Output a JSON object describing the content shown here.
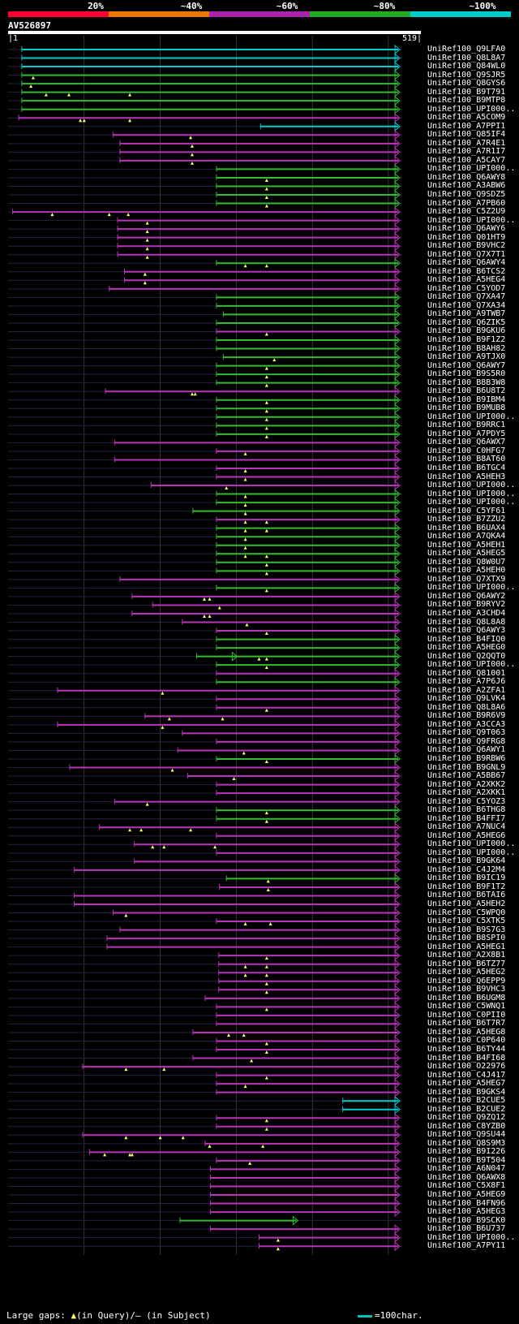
{
  "scale": {
    "labels": [
      "20%",
      "~40%",
      "~60%",
      "~80%",
      "~100%"
    ],
    "colors": [
      "#ff0033",
      "#ee7700",
      "#aa22aa",
      "#22aa22",
      "#00cccc"
    ]
  },
  "query": {
    "id": "AV526897",
    "start": "|1",
    "end": "519|",
    "length": 519
  },
  "colors": {
    "cyan": "#00cccc",
    "green": "#33bb33",
    "magenta": "#bb33bb",
    "grid": "#555555",
    "dotted": "#222244",
    "triangle": "#ffff66"
  },
  "hits": [
    {
      "label": "UniRef100_Q9LFA0",
      "start": 18,
      "end": 514,
      "c": "cyan"
    },
    {
      "label": "UniRef100_Q8L8A7",
      "start": 18,
      "end": 514,
      "c": "cyan"
    },
    {
      "label": "UniRef100_Q84WL0",
      "start": 18,
      "end": 514,
      "c": "cyan"
    },
    {
      "label": "UniRef100_Q9SJR5",
      "start": 18,
      "end": 514,
      "c": "green",
      "t": [
        33
      ]
    },
    {
      "label": "UniRef100_Q8GYS6",
      "start": 18,
      "end": 514,
      "c": "green",
      "t": [
        30
      ]
    },
    {
      "label": "UniRef100_B9T791",
      "start": 18,
      "end": 514,
      "c": "green",
      "t": [
        50,
        80,
        160
      ]
    },
    {
      "label": "UniRef100_B9MTP8",
      "start": 18,
      "end": 514,
      "c": "green"
    },
    {
      "label": "UniRef100_UPI000..",
      "start": 18,
      "end": 514,
      "c": "green"
    },
    {
      "label": "UniRef100_A5COM9",
      "start": 14,
      "end": 514,
      "c": "magenta",
      "t": [
        95,
        100,
        160
      ]
    },
    {
      "label": "UniRef100_A7PPI1",
      "start": 332,
      "end": 514,
      "c": "cyan"
    },
    {
      "label": "UniRef100_Q85IF4",
      "start": 138,
      "end": 514,
      "c": "magenta",
      "t": [
        240
      ]
    },
    {
      "label": "UniRef100_A7R4E1",
      "start": 147,
      "end": 514,
      "c": "magenta",
      "t": [
        242
      ]
    },
    {
      "label": "UniRef100_A7R1I7",
      "start": 147,
      "end": 514,
      "c": "magenta",
      "t": [
        242
      ]
    },
    {
      "label": "UniRef100_A5CAY7",
      "start": 147,
      "end": 514,
      "c": "magenta",
      "t": [
        242
      ]
    },
    {
      "label": "UniRef100_UPI000..",
      "start": 274,
      "end": 514,
      "c": "green"
    },
    {
      "label": "UniRef100_Q6AWY8",
      "start": 274,
      "end": 514,
      "c": "green",
      "t": [
        340
      ]
    },
    {
      "label": "UniRef100_A3ABW6",
      "start": 274,
      "end": 514,
      "c": "green",
      "t": [
        340
      ]
    },
    {
      "label": "UniRef100_Q9SDZ5",
      "start": 274,
      "end": 514,
      "c": "green",
      "t": [
        340
      ]
    },
    {
      "label": "UniRef100_A7PB60",
      "start": 274,
      "end": 514,
      "c": "green",
      "t": [
        340
      ]
    },
    {
      "label": "UniRef100_C5Z2U9",
      "start": 6,
      "end": 514,
      "c": "magenta",
      "t": [
        58,
        133,
        158
      ]
    },
    {
      "label": "UniRef100_UPI000..",
      "start": 144,
      "end": 514,
      "c": "magenta",
      "t": [
        183
      ]
    },
    {
      "label": "UniRef100_Q6AWY6",
      "start": 144,
      "end": 514,
      "c": "magenta",
      "t": [
        183
      ]
    },
    {
      "label": "UniRef100_Q01HT9",
      "start": 144,
      "end": 514,
      "c": "magenta",
      "t": [
        183
      ]
    },
    {
      "label": "UniRef100_B9VHC2",
      "start": 144,
      "end": 514,
      "c": "magenta",
      "t": [
        183
      ]
    },
    {
      "label": "UniRef100_Q7X7T1",
      "start": 144,
      "end": 514,
      "c": "magenta",
      "t": [
        183
      ]
    },
    {
      "label": "UniRef100_Q6AWY4",
      "start": 274,
      "end": 514,
      "c": "green",
      "t": [
        312,
        340
      ]
    },
    {
      "label": "UniRef100_B6TCS2",
      "start": 153,
      "end": 514,
      "c": "magenta",
      "t": [
        180
      ]
    },
    {
      "label": "UniRef100_A5HEG4",
      "start": 153,
      "end": 514,
      "c": "magenta",
      "t": [
        180
      ]
    },
    {
      "label": "UniRef100_C5YOD7",
      "start": 133,
      "end": 514,
      "c": "magenta"
    },
    {
      "label": "UniRef100_Q7XA47",
      "start": 274,
      "end": 514,
      "c": "green"
    },
    {
      "label": "UniRef100_Q7XA34",
      "start": 274,
      "end": 514,
      "c": "green"
    },
    {
      "label": "UniRef100_A9TWB7",
      "start": 283,
      "end": 514,
      "c": "green"
    },
    {
      "label": "UniRef100_Q6ZIK5",
      "start": 274,
      "end": 514,
      "c": "green"
    },
    {
      "label": "UniRef100_B9GKU6",
      "start": 274,
      "end": 514,
      "c": "magenta",
      "t": [
        340
      ]
    },
    {
      "label": "UniRef100_B9F1Z2",
      "start": 274,
      "end": 514,
      "c": "green"
    },
    {
      "label": "UniRef100_B8AH82",
      "start": 274,
      "end": 514,
      "c": "green"
    },
    {
      "label": "UniRef100_A9TJX0",
      "start": 283,
      "end": 514,
      "c": "green",
      "t": [
        350
      ]
    },
    {
      "label": "UniRef100_Q6AWY7",
      "start": 274,
      "end": 514,
      "c": "green",
      "t": [
        340
      ]
    },
    {
      "label": "UniRef100_B9S5R0",
      "start": 274,
      "end": 514,
      "c": "green",
      "t": [
        340
      ]
    },
    {
      "label": "UniRef100_B8B3W8",
      "start": 274,
      "end": 514,
      "c": "green",
      "t": [
        340
      ]
    },
    {
      "label": "UniRef100_B6U8T2",
      "start": 128,
      "end": 514,
      "c": "magenta",
      "t": [
        242,
        246
      ]
    },
    {
      "label": "UniRef100_B9IBM4",
      "start": 274,
      "end": 514,
      "c": "green",
      "t": [
        340
      ]
    },
    {
      "label": "UniRef100_B9MUB8",
      "start": 274,
      "end": 514,
      "c": "green",
      "t": [
        340
      ]
    },
    {
      "label": "UniRef100_UPI000..",
      "start": 274,
      "end": 514,
      "c": "green",
      "t": [
        340
      ]
    },
    {
      "label": "UniRef100_B9RRC1",
      "start": 274,
      "end": 514,
      "c": "green",
      "t": [
        340
      ]
    },
    {
      "label": "UniRef100_A7PDY5",
      "start": 274,
      "end": 514,
      "c": "green",
      "t": [
        340
      ]
    },
    {
      "label": "UniRef100_Q6AWX7",
      "start": 140,
      "end": 514,
      "c": "magenta"
    },
    {
      "label": "UniRef100_C0HFG7",
      "start": 274,
      "end": 514,
      "c": "magenta",
      "t": [
        312
      ]
    },
    {
      "label": "UniRef100_B8AT60",
      "start": 140,
      "end": 514,
      "c": "magenta"
    },
    {
      "label": "UniRef100_B6TGC4",
      "start": 274,
      "end": 514,
      "c": "magenta",
      "t": [
        312
      ]
    },
    {
      "label": "UniRef100_A5HEH3",
      "start": 274,
      "end": 514,
      "c": "magenta",
      "t": [
        312
      ]
    },
    {
      "label": "UniRef100_UPI000..",
      "start": 188,
      "end": 514,
      "c": "magenta",
      "t": [
        287
      ]
    },
    {
      "label": "UniRef100_UPI000..",
      "start": 274,
      "end": 514,
      "c": "green",
      "t": [
        312
      ]
    },
    {
      "label": "UniRef100_UPI000..",
      "start": 274,
      "end": 514,
      "c": "green",
      "t": [
        312
      ]
    },
    {
      "label": "UniRef100_C5YF61",
      "start": 243,
      "end": 514,
      "c": "green",
      "t": [
        312
      ]
    },
    {
      "label": "UniRef100_B7ZZU2",
      "start": 274,
      "end": 514,
      "c": "magenta",
      "t": [
        312,
        340
      ]
    },
    {
      "label": "UniRef100_B6UAX4",
      "start": 274,
      "end": 514,
      "c": "green",
      "t": [
        312,
        340
      ]
    },
    {
      "label": "UniRef100_A7QKA4",
      "start": 274,
      "end": 514,
      "c": "green",
      "t": [
        312
      ]
    },
    {
      "label": "UniRef100_A5HEH1",
      "start": 274,
      "end": 514,
      "c": "green",
      "t": [
        312
      ]
    },
    {
      "label": "UniRef100_A5HEG5",
      "start": 274,
      "end": 514,
      "c": "green",
      "t": [
        312,
        340
      ]
    },
    {
      "label": "UniRef100_Q8W0U7",
      "start": 274,
      "end": 514,
      "c": "green",
      "t": [
        340
      ]
    },
    {
      "label": "UniRef100_A5HEH0",
      "start": 274,
      "end": 514,
      "c": "green",
      "t": [
        340
      ]
    },
    {
      "label": "UniRef100_Q7XTX9",
      "start": 147,
      "end": 514,
      "c": "magenta"
    },
    {
      "label": "UniRef100_UPI000..",
      "start": 274,
      "end": 514,
      "c": "green",
      "t": [
        340
      ]
    },
    {
      "label": "UniRef100_Q6AWY2",
      "start": 163,
      "end": 514,
      "c": "magenta",
      "t": [
        258,
        265
      ]
    },
    {
      "label": "UniRef100_B9RYV2",
      "start": 190,
      "end": 514,
      "c": "magenta",
      "t": [
        278
      ]
    },
    {
      "label": "UniRef100_A3CHD4",
      "start": 163,
      "end": 514,
      "c": "magenta",
      "t": [
        258,
        265
      ]
    },
    {
      "label": "UniRef100_Q8L8A8",
      "start": 229,
      "end": 514,
      "c": "magenta",
      "t": [
        314
      ]
    },
    {
      "label": "UniRef100_Q6AWY3",
      "start": 274,
      "end": 514,
      "c": "magenta",
      "t": [
        340
      ]
    },
    {
      "label": "UniRef100_B4FIQ0",
      "start": 274,
      "end": 514,
      "c": "green"
    },
    {
      "label": "UniRef100_A5HEG0",
      "start": 274,
      "end": 514,
      "c": "green"
    },
    {
      "label": "UniRef100_Q2QQT0",
      "start": 248,
      "end": 514,
      "c": "green",
      "t": [
        330,
        340
      ],
      "mid": 300
    },
    {
      "label": "UniRef100_UPI000..",
      "start": 274,
      "end": 514,
      "c": "green",
      "t": [
        340
      ]
    },
    {
      "label": "UniRef100_Q81001",
      "start": 274,
      "end": 514,
      "c": "magenta"
    },
    {
      "label": "UniRef100_A7P6J6",
      "start": 274,
      "end": 514,
      "c": "green"
    },
    {
      "label": "UniRef100_A2ZFA1",
      "start": 65,
      "end": 514,
      "c": "magenta",
      "t": [
        203
      ]
    },
    {
      "label": "UniRef100_Q9LVK4",
      "start": 274,
      "end": 514,
      "c": "magenta"
    },
    {
      "label": "UniRef100_Q8L8A6",
      "start": 274,
      "end": 514,
      "c": "magenta",
      "t": [
        340
      ]
    },
    {
      "label": "UniRef100_B9R6V9",
      "start": 180,
      "end": 514,
      "c": "magenta",
      "t": [
        212,
        282
      ]
    },
    {
      "label": "UniRef100_A3CCA3",
      "start": 65,
      "end": 514,
      "c": "magenta",
      "t": [
        203
      ]
    },
    {
      "label": "UniRef100_Q9T063",
      "start": 229,
      "end": 514,
      "c": "magenta"
    },
    {
      "label": "UniRef100_Q9FRG8",
      "start": 274,
      "end": 514,
      "c": "magenta"
    },
    {
      "label": "UniRef100_Q6AWY1",
      "start": 223,
      "end": 514,
      "c": "magenta",
      "t": [
        310
      ]
    },
    {
      "label": "UniRef100_B9RBW6",
      "start": 274,
      "end": 514,
      "c": "green",
      "t": [
        340
      ]
    },
    {
      "label": "UniRef100_B9GNL9",
      "start": 81,
      "end": 514,
      "c": "magenta",
      "t": [
        216
      ]
    },
    {
      "label": "UniRef100_A5BB67",
      "start": 236,
      "end": 514,
      "c": "magenta",
      "t": [
        297
      ]
    },
    {
      "label": "UniRef100_A2XKK2",
      "start": 274,
      "end": 514,
      "c": "magenta"
    },
    {
      "label": "UniRef100_A2XKK1",
      "start": 274,
      "end": 514,
      "c": "magenta"
    },
    {
      "label": "UniRef100_C5YOZ3",
      "start": 140,
      "end": 514,
      "c": "magenta",
      "t": [
        183
      ]
    },
    {
      "label": "UniRef100_B6THG8",
      "start": 274,
      "end": 514,
      "c": "green",
      "t": [
        340
      ]
    },
    {
      "label": "UniRef100_B4FFI7",
      "start": 274,
      "end": 514,
      "c": "green",
      "t": [
        340
      ]
    },
    {
      "label": "UniRef100_A7NUC4",
      "start": 120,
      "end": 514,
      "c": "magenta",
      "t": [
        160,
        175,
        240
      ]
    },
    {
      "label": "UniRef100_A5HEG6",
      "start": 274,
      "end": 514,
      "c": "magenta"
    },
    {
      "label": "UniRef100_UPI000..",
      "start": 166,
      "end": 514,
      "c": "magenta",
      "t": [
        190,
        205,
        272
      ]
    },
    {
      "label": "UniRef100_UPI000..",
      "start": 274,
      "end": 514,
      "c": "magenta"
    },
    {
      "label": "UniRef100_B9GK64",
      "start": 166,
      "end": 514,
      "c": "magenta"
    },
    {
      "label": "UniRef100_C4J2M4",
      "start": 87,
      "end": 514,
      "c": "magenta"
    },
    {
      "label": "UniRef100_B9IC19",
      "start": 287,
      "end": 514,
      "c": "green",
      "t": [
        342
      ]
    },
    {
      "label": "UniRef100_B9F1T2",
      "start": 278,
      "end": 514,
      "c": "magenta",
      "t": [
        342
      ]
    },
    {
      "label": "UniRef100_B6TAI6",
      "start": 87,
      "end": 514,
      "c": "magenta"
    },
    {
      "label": "UniRef100_A5HEH2",
      "start": 87,
      "end": 514,
      "c": "magenta"
    },
    {
      "label": "UniRef100_C5WPQ0",
      "start": 138,
      "end": 514,
      "c": "magenta",
      "t": [
        155
      ]
    },
    {
      "label": "UniRef100_C5XTK5",
      "start": 274,
      "end": 514,
      "c": "magenta",
      "t": [
        312,
        345
      ]
    },
    {
      "label": "UniRef100_B9S7G3",
      "start": 147,
      "end": 514,
      "c": "magenta"
    },
    {
      "label": "UniRef100_B8SPI0",
      "start": 130,
      "end": 514,
      "c": "magenta"
    },
    {
      "label": "UniRef100_A5HEG1",
      "start": 130,
      "end": 514,
      "c": "magenta"
    },
    {
      "label": "UniRef100_A2X8B1",
      "start": 277,
      "end": 514,
      "c": "magenta",
      "t": [
        340
      ]
    },
    {
      "label": "UniRef100_B6TZ77",
      "start": 277,
      "end": 514,
      "c": "magenta",
      "t": [
        312,
        340
      ]
    },
    {
      "label": "UniRef100_A5HEG2",
      "start": 277,
      "end": 514,
      "c": "magenta",
      "t": [
        312,
        340
      ]
    },
    {
      "label": "UniRef100_Q6EPP9",
      "start": 277,
      "end": 514,
      "c": "magenta",
      "t": [
        340
      ]
    },
    {
      "label": "UniRef100_B9VHC3",
      "start": 277,
      "end": 514,
      "c": "magenta",
      "t": [
        340
      ]
    },
    {
      "label": "UniRef100_B6UGM8",
      "start": 259,
      "end": 514,
      "c": "magenta"
    },
    {
      "label": "UniRef100_C5WNQ1",
      "start": 274,
      "end": 514,
      "c": "magenta",
      "t": [
        340
      ]
    },
    {
      "label": "UniRef100_C0PII0",
      "start": 274,
      "end": 514,
      "c": "magenta"
    },
    {
      "label": "UniRef100_B6T7R7",
      "start": 274,
      "end": 514,
      "c": "magenta"
    },
    {
      "label": "UniRef100_A5HEG8",
      "start": 243,
      "end": 514,
      "c": "magenta",
      "t": [
        290,
        310
      ]
    },
    {
      "label": "UniRef100_C0P640",
      "start": 274,
      "end": 514,
      "c": "magenta",
      "t": [
        340
      ]
    },
    {
      "label": "UniRef100_B6TY44",
      "start": 274,
      "end": 514,
      "c": "magenta",
      "t": [
        340
      ]
    },
    {
      "label": "UniRef100_B4FI68",
      "start": 243,
      "end": 514,
      "c": "magenta",
      "t": [
        320
      ]
    },
    {
      "label": "UniRef100_O22976",
      "start": 98,
      "end": 514,
      "c": "magenta",
      "t": [
        155,
        205
      ]
    },
    {
      "label": "UniRef100_C4J417",
      "start": 274,
      "end": 514,
      "c": "magenta",
      "t": [
        340
      ]
    },
    {
      "label": "UniRef100_A5HEG7",
      "start": 274,
      "end": 514,
      "c": "magenta",
      "t": [
        312
      ]
    },
    {
      "label": "UniRef100_B9GKS4",
      "start": 274,
      "end": 514,
      "c": "magenta"
    },
    {
      "label": "UniRef100_B2CUE5",
      "start": 440,
      "end": 514,
      "c": "cyan"
    },
    {
      "label": "UniRef100_B2CUE2",
      "start": 440,
      "end": 514,
      "c": "cyan"
    },
    {
      "label": "UniRef100_Q9ZQ12",
      "start": 274,
      "end": 514,
      "c": "magenta",
      "t": [
        340
      ]
    },
    {
      "label": "UniRef100_C8YZB0",
      "start": 274,
      "end": 514,
      "c": "magenta",
      "t": [
        340
      ]
    },
    {
      "label": "UniRef100_Q9SU44",
      "start": 98,
      "end": 514,
      "c": "magenta",
      "t": [
        155,
        200,
        230
      ]
    },
    {
      "label": "UniRef100_Q8S9M3",
      "start": 259,
      "end": 514,
      "c": "magenta",
      "t": [
        265,
        335
      ]
    },
    {
      "label": "UniRef100_B9I226",
      "start": 107,
      "end": 514,
      "c": "magenta",
      "t": [
        127,
        160,
        163
      ]
    },
    {
      "label": "UniRef100_B9T504",
      "start": 274,
      "end": 514,
      "c": "magenta",
      "t": [
        318
      ]
    },
    {
      "label": "UniRef100_A6N047",
      "start": 266,
      "end": 514,
      "c": "magenta"
    },
    {
      "label": "UniRef100_Q6AWX8",
      "start": 266,
      "end": 514,
      "c": "magenta"
    },
    {
      "label": "UniRef100_C5X8F1",
      "start": 266,
      "end": 514,
      "c": "magenta"
    },
    {
      "label": "UniRef100_A5HEG9",
      "start": 266,
      "end": 514,
      "c": "magenta"
    },
    {
      "label": "UniRef100_B4FN96",
      "start": 266,
      "end": 514,
      "c": "magenta"
    },
    {
      "label": "UniRef100_A5HEG3",
      "start": 266,
      "end": 514,
      "c": "magenta"
    },
    {
      "label": "UniRef100_B9SCK0",
      "start": 226,
      "end": 380,
      "c": "green"
    },
    {
      "label": "UniRef100_B6U737",
      "start": 266,
      "end": 514,
      "c": "magenta"
    },
    {
      "label": "UniRef100_UPI000..",
      "start": 330,
      "end": 514,
      "c": "magenta",
      "t": [
        355
      ]
    },
    {
      "label": "UniRef100_A7PY11",
      "start": 330,
      "end": 514,
      "c": "magenta",
      "t": [
        355
      ]
    }
  ],
  "legend": {
    "left_prefix": "Large gaps: ",
    "left_tri": "▲",
    "left_rest": "(in Query)/— (in Subject)",
    "right": "=100char."
  }
}
